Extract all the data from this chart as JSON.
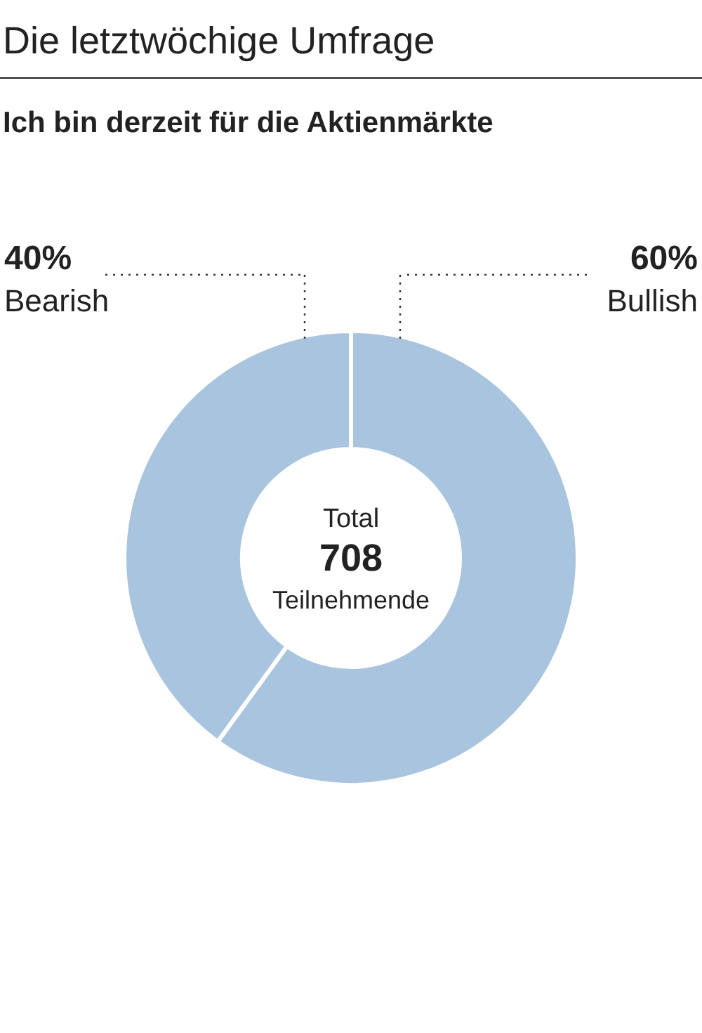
{
  "chart_data": {
    "type": "donut",
    "title": "Die letztwöchige Umfrage",
    "subtitle": "Ich bin derzeit für die Aktienmärkte",
    "categories": [
      "Bullish",
      "Bearish"
    ],
    "values": [
      60,
      40
    ],
    "value_labels": [
      "60%",
      "40%"
    ],
    "colors": [
      "#a8c4de",
      "#a8c4de"
    ],
    "legend": false,
    "annotations": [
      "Total",
      "708",
      "Teilnehmende"
    ]
  }
}
